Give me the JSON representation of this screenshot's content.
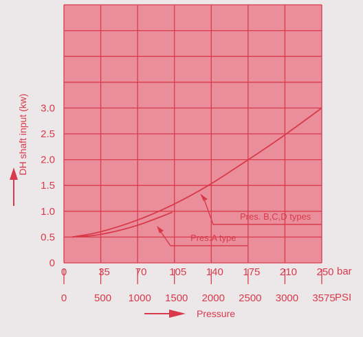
{
  "chart_data": {
    "type": "line",
    "title": "",
    "ylabel": "DH shaft input (kw)",
    "xlabel": "Pressure",
    "y_ticks": [
      "0",
      "0.5",
      "1.0",
      "1.5",
      "2.0",
      "2.5",
      "3.0"
    ],
    "x_ticks_bar": [
      "0",
      "35",
      "70",
      "105",
      "140",
      "175",
      "210",
      "250"
    ],
    "x_unit_bar": "bar",
    "x_ticks_psi": [
      "0",
      "500",
      "1000",
      "1500",
      "2000",
      "2500",
      "3000",
      "3575"
    ],
    "x_unit_psi": "PSI",
    "ylim": [
      0,
      5.0
    ],
    "xlim": [
      0,
      250
    ],
    "grid": true,
    "colors": {
      "grid_fill": "#ea8e9b",
      "line": "#d83a4b",
      "background": "#ece7e8"
    },
    "series": [
      {
        "name": "Pres. B,C,D types",
        "x": [
          0,
          35,
          70,
          105,
          140,
          175,
          210,
          250
        ],
        "y": [
          0.5,
          0.6,
          0.82,
          1.12,
          1.5,
          1.95,
          2.42,
          3.0
        ]
      },
      {
        "name": "Pres.A type",
        "x": [
          0,
          35,
          70,
          105
        ],
        "y": [
          0.5,
          0.55,
          0.72,
          0.98
        ]
      }
    ]
  }
}
